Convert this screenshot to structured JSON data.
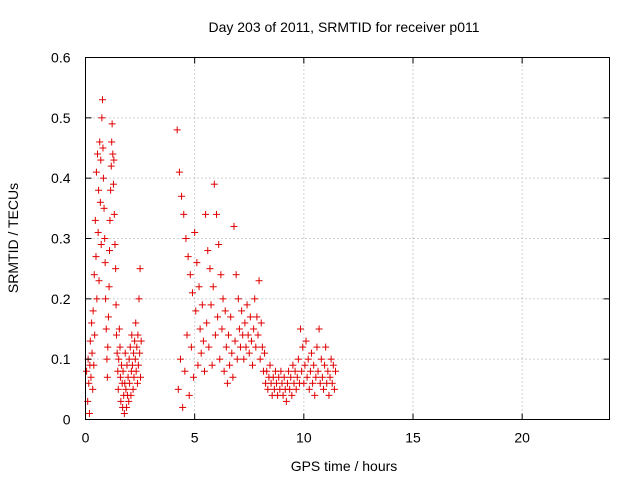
{
  "chart_data": {
    "type": "scatter",
    "title": "Day 203 of 2011, SRMTID for receiver p011",
    "xlabel": "GPS time / hours",
    "ylabel": "SRMTID / TECUs",
    "xlim": [
      0,
      24
    ],
    "ylim": [
      0,
      0.6
    ],
    "xticks": [
      "0",
      "5",
      "10",
      "15",
      "20"
    ],
    "yticks": [
      "0",
      "0.1",
      "0.2",
      "0.3",
      "0.4",
      "0.5",
      "0.6"
    ],
    "grid": true,
    "marker": "+",
    "series_color": "#e00000",
    "series": [
      {
        "name": "SRMTID",
        "points": [
          [
            0.05,
            0.08
          ],
          [
            0.1,
            0.03
          ],
          [
            0.12,
            0.1
          ],
          [
            0.15,
            0.06
          ],
          [
            0.18,
            0.01
          ],
          [
            0.2,
            0.09
          ],
          [
            0.22,
            0.13
          ],
          [
            0.25,
            0.07
          ],
          [
            0.28,
            0.16
          ],
          [
            0.3,
            0.11
          ],
          [
            0.33,
            0.05
          ],
          [
            0.35,
            0.18
          ],
          [
            0.38,
            0.09
          ],
          [
            0.4,
            0.24
          ],
          [
            0.42,
            0.14
          ],
          [
            0.45,
            0.33
          ],
          [
            0.48,
            0.27
          ],
          [
            0.5,
            0.41
          ],
          [
            0.52,
            0.2
          ],
          [
            0.55,
            0.44
          ],
          [
            0.58,
            0.31
          ],
          [
            0.6,
            0.38
          ],
          [
            0.62,
            0.23
          ],
          [
            0.65,
            0.46
          ],
          [
            0.68,
            0.36
          ],
          [
            0.7,
            0.43
          ],
          [
            0.72,
            0.29
          ],
          [
            0.75,
            0.5
          ],
          [
            0.78,
            0.53
          ],
          [
            0.8,
            0.45
          ],
          [
            0.82,
            0.4
          ],
          [
            0.85,
            0.35
          ],
          [
            0.88,
            0.3
          ],
          [
            0.9,
            0.26
          ],
          [
            0.92,
            0.2
          ],
          [
            0.95,
            0.15
          ],
          [
            0.98,
            0.1
          ],
          [
            1.0,
            0.07
          ],
          [
            1.02,
            0.12
          ],
          [
            1.05,
            0.17
          ],
          [
            1.08,
            0.22
          ],
          [
            1.1,
            0.28
          ],
          [
            1.12,
            0.33
          ],
          [
            1.15,
            0.38
          ],
          [
            1.18,
            0.42
          ],
          [
            1.2,
            0.46
          ],
          [
            1.22,
            0.49
          ],
          [
            1.25,
            0.44
          ],
          [
            1.28,
            0.39
          ],
          [
            1.3,
            0.43
          ],
          [
            1.32,
            0.34
          ],
          [
            1.35,
            0.29
          ],
          [
            1.38,
            0.25
          ],
          [
            1.4,
            0.19
          ],
          [
            1.42,
            0.14
          ],
          [
            1.45,
            0.11
          ],
          [
            1.48,
            0.08
          ],
          [
            1.5,
            0.05
          ],
          [
            1.52,
            0.1
          ],
          [
            1.55,
            0.15
          ],
          [
            1.58,
            0.12
          ],
          [
            1.6,
            0.07
          ],
          [
            1.62,
            0.03
          ],
          [
            1.65,
            0.09
          ],
          [
            1.68,
            0.06
          ],
          [
            1.7,
            0.02
          ],
          [
            1.72,
            0.08
          ],
          [
            1.75,
            0.04
          ],
          [
            1.78,
            0.01
          ],
          [
            1.8,
            0.06
          ],
          [
            1.82,
            0.11
          ],
          [
            1.85,
            0.05
          ],
          [
            1.88,
            0.02
          ],
          [
            1.9,
            0.09
          ],
          [
            1.92,
            0.04
          ],
          [
            1.95,
            0.07
          ],
          [
            1.98,
            0.03
          ],
          [
            2.0,
            0.1
          ],
          [
            2.02,
            0.06
          ],
          [
            2.05,
            0.12
          ],
          [
            2.08,
            0.04
          ],
          [
            2.1,
            0.08
          ],
          [
            2.12,
            0.14
          ],
          [
            2.15,
            0.09
          ],
          [
            2.18,
            0.05
          ],
          [
            2.2,
            0.11
          ],
          [
            2.22,
            0.07
          ],
          [
            2.25,
            0.13
          ],
          [
            2.28,
            0.1
          ],
          [
            2.3,
            0.16
          ],
          [
            2.32,
            0.08
          ],
          [
            2.35,
            0.12
          ],
          [
            2.38,
            0.06
          ],
          [
            2.4,
            0.14
          ],
          [
            2.42,
            0.09
          ],
          [
            2.45,
            0.2
          ],
          [
            2.48,
            0.11
          ],
          [
            2.5,
            0.25
          ],
          [
            2.52,
            0.07
          ],
          [
            2.55,
            0.13
          ],
          [
            4.2,
            0.48
          ],
          [
            4.25,
            0.05
          ],
          [
            4.3,
            0.41
          ],
          [
            4.35,
            0.1
          ],
          [
            4.4,
            0.37
          ],
          [
            4.45,
            0.02
          ],
          [
            4.5,
            0.34
          ],
          [
            4.55,
            0.08
          ],
          [
            4.6,
            0.3
          ],
          [
            4.65,
            0.14
          ],
          [
            4.7,
            0.27
          ],
          [
            4.75,
            0.04
          ],
          [
            4.8,
            0.24
          ],
          [
            4.85,
            0.12
          ],
          [
            4.9,
            0.21
          ],
          [
            4.95,
            0.07
          ],
          [
            5.0,
            0.31
          ],
          [
            5.05,
            0.18
          ],
          [
            5.1,
            0.26
          ],
          [
            5.15,
            0.09
          ],
          [
            5.2,
            0.22
          ],
          [
            5.25,
            0.15
          ],
          [
            5.3,
            0.11
          ],
          [
            5.35,
            0.19
          ],
          [
            5.4,
            0.13
          ],
          [
            5.45,
            0.08
          ],
          [
            5.5,
            0.34
          ],
          [
            5.55,
            0.16
          ],
          [
            5.6,
            0.28
          ],
          [
            5.65,
            0.12
          ],
          [
            5.7,
            0.25
          ],
          [
            5.75,
            0.19
          ],
          [
            5.8,
            0.09
          ],
          [
            5.85,
            0.22
          ],
          [
            5.9,
            0.39
          ],
          [
            5.95,
            0.14
          ],
          [
            6.0,
            0.34
          ],
          [
            6.05,
            0.17
          ],
          [
            6.1,
            0.29
          ],
          [
            6.15,
            0.1
          ],
          [
            6.2,
            0.24
          ],
          [
            6.25,
            0.15
          ],
          [
            6.3,
            0.2
          ],
          [
            6.35,
            0.08
          ],
          [
            6.4,
            0.18
          ],
          [
            6.45,
            0.12
          ],
          [
            6.5,
            0.06
          ],
          [
            6.55,
            0.14
          ],
          [
            6.6,
            0.09
          ],
          [
            6.65,
            0.17
          ],
          [
            6.7,
            0.11
          ],
          [
            6.75,
            0.07
          ],
          [
            6.8,
            0.32
          ],
          [
            6.85,
            0.13
          ],
          [
            6.9,
            0.24
          ],
          [
            6.95,
            0.1
          ],
          [
            7.0,
            0.2
          ],
          [
            7.05,
            0.15
          ],
          [
            7.1,
            0.12
          ],
          [
            7.15,
            0.18
          ],
          [
            7.2,
            0.14
          ],
          [
            7.25,
            0.1
          ],
          [
            7.3,
            0.16
          ],
          [
            7.35,
            0.12
          ],
          [
            7.4,
            0.19
          ],
          [
            7.45,
            0.14
          ],
          [
            7.5,
            0.11
          ],
          [
            7.55,
            0.17
          ],
          [
            7.6,
            0.13
          ],
          [
            7.65,
            0.09
          ],
          [
            7.7,
            0.15
          ],
          [
            7.75,
            0.2
          ],
          [
            7.8,
            0.12
          ],
          [
            7.85,
            0.17
          ],
          [
            7.9,
            0.14
          ],
          [
            7.95,
            0.23
          ],
          [
            8.0,
            0.1
          ],
          [
            8.05,
            0.16
          ],
          [
            8.1,
            0.12
          ],
          [
            8.15,
            0.08
          ],
          [
            8.2,
            0.11
          ],
          [
            8.25,
            0.06
          ],
          [
            8.3,
            0.08
          ],
          [
            8.35,
            0.05
          ],
          [
            8.4,
            0.07
          ],
          [
            8.45,
            0.09
          ],
          [
            8.5,
            0.06
          ],
          [
            8.55,
            0.04
          ],
          [
            8.6,
            0.07
          ],
          [
            8.65,
            0.05
          ],
          [
            8.7,
            0.08
          ],
          [
            8.75,
            0.06
          ],
          [
            8.8,
            0.04
          ],
          [
            8.85,
            0.07
          ],
          [
            8.9,
            0.05
          ],
          [
            8.95,
            0.08
          ],
          [
            9.0,
            0.06
          ],
          [
            9.05,
            0.04
          ],
          [
            9.1,
            0.07
          ],
          [
            9.15,
            0.05
          ],
          [
            9.2,
            0.03
          ],
          [
            9.25,
            0.06
          ],
          [
            9.3,
            0.08
          ],
          [
            9.35,
            0.05
          ],
          [
            9.4,
            0.07
          ],
          [
            9.45,
            0.04
          ],
          [
            9.5,
            0.09
          ],
          [
            9.55,
            0.06
          ],
          [
            9.6,
            0.08
          ],
          [
            9.65,
            0.05
          ],
          [
            9.7,
            0.07
          ],
          [
            9.75,
            0.1
          ],
          [
            9.8,
            0.06
          ],
          [
            9.85,
            0.15
          ],
          [
            9.9,
            0.08
          ],
          [
            9.95,
            0.12
          ],
          [
            10.0,
            0.06
          ],
          [
            10.05,
            0.09
          ],
          [
            10.1,
            0.13
          ],
          [
            10.15,
            0.07
          ],
          [
            10.2,
            0.1
          ],
          [
            10.25,
            0.05
          ],
          [
            10.3,
            0.08
          ],
          [
            10.35,
            0.11
          ],
          [
            10.4,
            0.06
          ],
          [
            10.45,
            0.09
          ],
          [
            10.5,
            0.04
          ],
          [
            10.55,
            0.07
          ],
          [
            10.6,
            0.12
          ],
          [
            10.65,
            0.08
          ],
          [
            10.7,
            0.15
          ],
          [
            10.75,
            0.06
          ],
          [
            10.8,
            0.1
          ],
          [
            10.85,
            0.07
          ],
          [
            10.9,
            0.05
          ],
          [
            10.95,
            0.09
          ],
          [
            11.0,
            0.12
          ],
          [
            11.05,
            0.06
          ],
          [
            11.1,
            0.08
          ],
          [
            11.15,
            0.04
          ],
          [
            11.2,
            0.07
          ],
          [
            11.25,
            0.1
          ],
          [
            11.3,
            0.06
          ],
          [
            11.35,
            0.09
          ],
          [
            11.4,
            0.05
          ],
          [
            11.45,
            0.08
          ]
        ]
      }
    ]
  }
}
